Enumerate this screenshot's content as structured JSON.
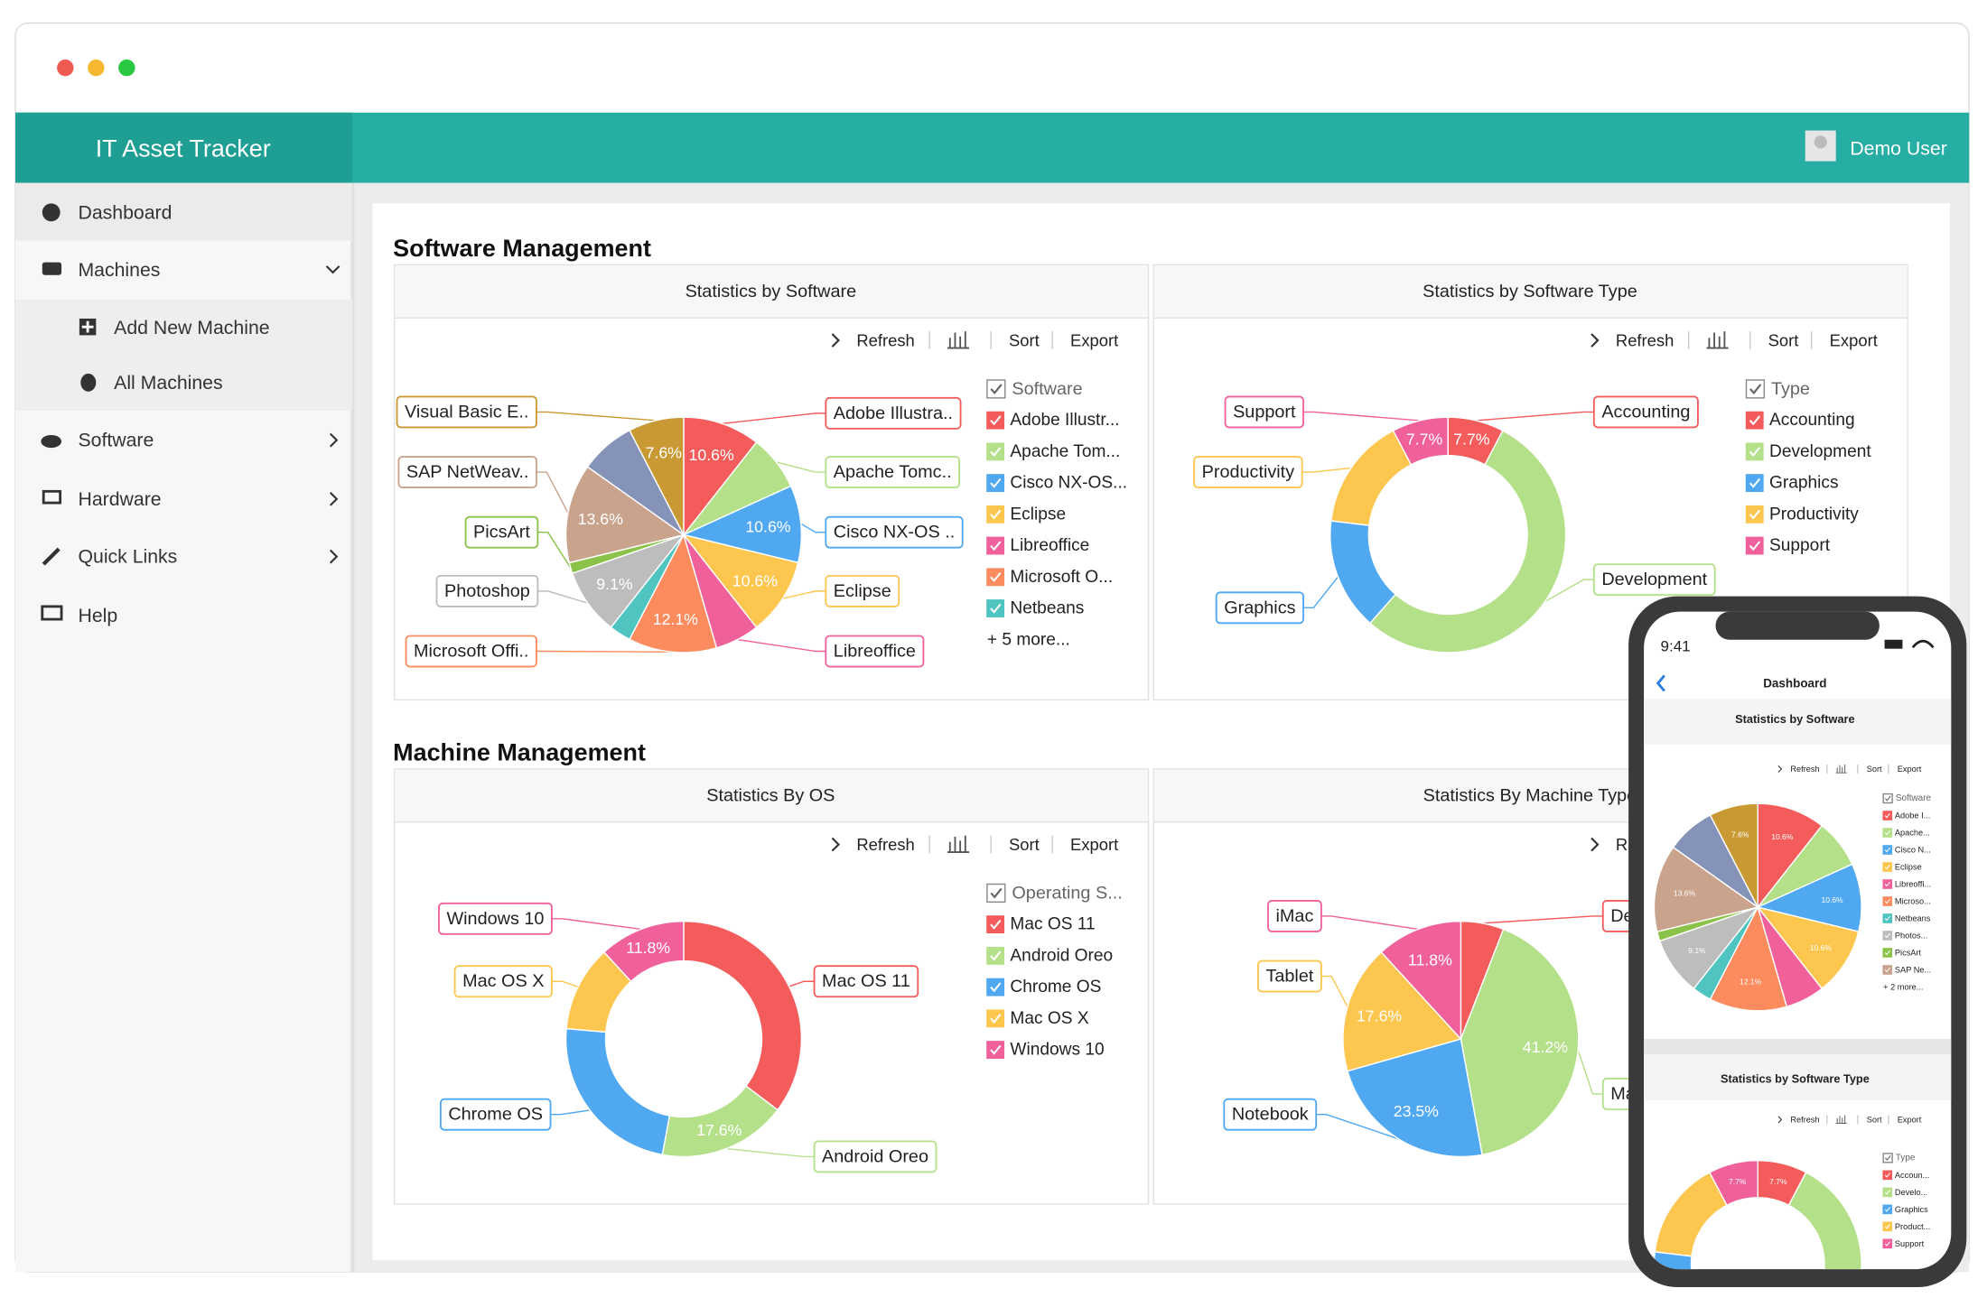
{
  "window": {
    "app_title": "IT Asset Tracker",
    "user": "Demo User"
  },
  "sidebar": {
    "items": [
      "Dashboard",
      "Machines",
      "Add New Machine",
      "All Machines",
      "Software",
      "Hardware",
      "Quick Links",
      "Help"
    ]
  },
  "sections": [
    "Software Management",
    "Machine Management"
  ],
  "toolbar": {
    "refresh": "Refresh",
    "sort": "Sort",
    "export": "Export"
  },
  "chart_data": [
    {
      "type": "pie",
      "title": "Statistics by Software",
      "categories": [
        "Adobe Illustra..",
        "Apache Tomc..",
        "Cisco NX-OS ..",
        "Eclipse",
        "Libreoffice",
        "Microsoft Offi..",
        null,
        "Photoshop",
        "PicsArt",
        "SAP NetWeav..",
        null,
        "Visual Basic E.."
      ],
      "values": [
        10.6,
        7.6,
        10.6,
        10.6,
        6.1,
        12.1,
        3.0,
        9.1,
        1.5,
        13.6,
        7.6,
        7.6
      ],
      "value_labels": [
        "10.6%",
        null,
        "10.6%",
        "10.6%",
        null,
        "12.1%",
        null,
        "9.1%",
        null,
        "13.6%",
        null,
        "7.6%"
      ],
      "colors": [
        "#f45b5b",
        "#b5e08a",
        "#4fa8f0",
        "#fcc64f",
        "#f0609a",
        "#fc8c5e",
        "#4fc4c0",
        "#bdbdbd",
        "#8bc34a",
        "#c9a38c",
        "#8593b8",
        "#c99a33"
      ],
      "legend": {
        "title": "Software",
        "items": [
          "Adobe Illustr...",
          "Apache Tom...",
          "Cisco NX-OS...",
          "Eclipse",
          "Libreoffice",
          "Microsoft O...",
          "Netbeans"
        ],
        "more": "+ 5 more..."
      }
    },
    {
      "type": "donut",
      "title": "Statistics by Software Type",
      "categories": [
        "Accounting",
        "Development",
        "Graphics",
        "Productivity",
        "Support"
      ],
      "values": [
        7.7,
        53.8,
        15.4,
        15.4,
        7.7
      ],
      "value_labels": [
        "7.7%",
        null,
        null,
        null,
        "7.7%"
      ],
      "colors": [
        "#f45b5b",
        "#b5e08a",
        "#4fa8f0",
        "#fcc64f",
        "#f0609a"
      ],
      "legend": {
        "title": "Type",
        "items": [
          "Accounting",
          "Development",
          "Graphics",
          "Productivity",
          "Support"
        ]
      }
    },
    {
      "type": "donut",
      "title": "Statistics By OS",
      "categories": [
        "Mac OS 11",
        "Android Oreo",
        "Chrome OS",
        "Mac OS X",
        "Windows 10"
      ],
      "values": [
        35.3,
        17.6,
        23.5,
        11.8,
        11.8
      ],
      "value_labels": [
        null,
        "17.6%",
        null,
        null,
        "11.8%"
      ],
      "colors": [
        "#f45b5b",
        "#b5e08a",
        "#4fa8f0",
        "#fcc64f",
        "#f0609a"
      ],
      "legend": {
        "title": "Operating S...",
        "items": [
          "Mac OS 11",
          "Android Oreo",
          "Chrome OS",
          "Mac OS X",
          "Windows 10"
        ]
      }
    },
    {
      "type": "pie",
      "title": "Statistics By Machine Type",
      "categories": [
        "De",
        "Ma",
        "Notebook",
        "Tablet",
        "iMac"
      ],
      "values": [
        5.9,
        41.2,
        23.5,
        17.6,
        11.8
      ],
      "value_labels": [
        null,
        "41.2%",
        "23.5%",
        "17.6%",
        "11.8%"
      ],
      "colors": [
        "#f45b5b",
        "#b5e08a",
        "#4fa8f0",
        "#fcc64f",
        "#f0609a"
      ]
    }
  ],
  "phone": {
    "time": "9:41",
    "title": "Dashboard",
    "charts": [
      {
        "title": "Statistics by Software",
        "legend_title": "Software",
        "legend": [
          "Adobe I...",
          "Apache...",
          "Cisco N...",
          "Eclipse",
          "Libreoffi...",
          "Microso...",
          "Netbeans",
          "Photos...",
          "PicsArt",
          "SAP Ne..."
        ],
        "more": "+ 2 more..."
      },
      {
        "title": "Statistics by Software Type",
        "legend_title": "Type",
        "legend": [
          "Accoun...",
          "Develo...",
          "Graphics",
          "Product...",
          "Support"
        ]
      }
    ]
  }
}
